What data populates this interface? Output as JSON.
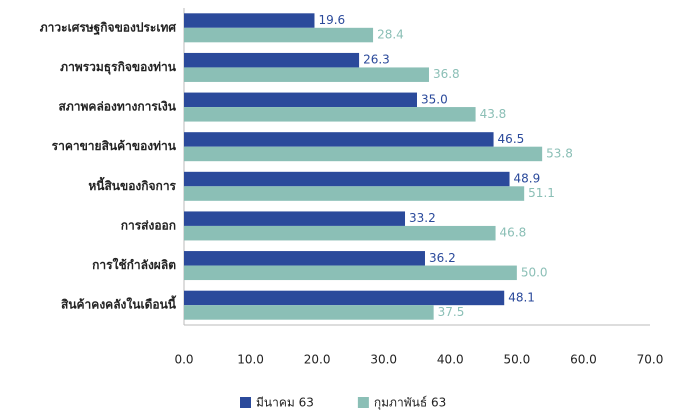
{
  "chart_data": {
    "type": "bar",
    "orientation": "horizontal",
    "categories": [
      "ภาวะเศรษฐกิจของประเทศ",
      "ภาพรวมธุรกิจของท่าน",
      "สภาพคล่องทางการเงิน",
      "ราคาขายสินค้าของท่าน",
      "หนี้สินของกิจการ",
      "การส่งออก",
      "การใช้กำลังผลิต",
      "สินค้าคงคลังในเดือนนี้"
    ],
    "series": [
      {
        "name": "มีนาคม 63",
        "color": "#2b4a9b",
        "values": [
          19.6,
          26.3,
          35.0,
          46.5,
          48.9,
          33.2,
          36.2,
          48.1
        ],
        "value_labels": [
          "19.6",
          "26.3",
          "35.0",
          "46.5",
          "48.9",
          "33.2",
          "36.2",
          "48.1"
        ]
      },
      {
        "name": "กุมภาพันธ์ 63",
        "color": "#8bbfb6",
        "values": [
          28.4,
          36.8,
          43.8,
          53.8,
          51.1,
          46.8,
          50.0,
          37.5
        ],
        "value_labels": [
          "28.4",
          "36.8",
          "43.8",
          "53.8",
          "51.1",
          "46.8",
          "50.0",
          "37.5"
        ]
      }
    ],
    "xlim": [
      0,
      70
    ],
    "xticks": [
      {
        "value": 0,
        "label": "0.0"
      },
      {
        "value": 10,
        "label": "10.0"
      },
      {
        "value": 20,
        "label": "20.0"
      },
      {
        "value": 30,
        "label": "30.0"
      },
      {
        "value": 40,
        "label": "40.0"
      },
      {
        "value": 50,
        "label": "50.0"
      },
      {
        "value": 60,
        "label": "60.0"
      },
      {
        "value": 70,
        "label": "70.0"
      }
    ],
    "legend": "bottom"
  }
}
